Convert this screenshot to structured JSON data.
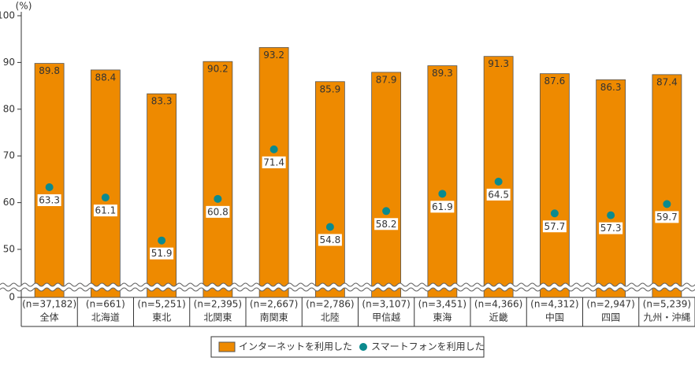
{
  "chart_data": {
    "type": "bar",
    "y_unit_label": "(%)",
    "categories": [
      "全体",
      "北海道",
      "東北",
      "北関東",
      "南関東",
      "北陸",
      "甲信越",
      "東海",
      "近畿",
      "中国",
      "四国",
      "九州・沖縄"
    ],
    "sample_sizes": [
      "(n=37,182)",
      "(n=661)",
      "(n=5,251)",
      "(n=2,395)",
      "(n=2,667)",
      "(n=2,786)",
      "(n=3,107)",
      "(n=3,451)",
      "(n=4,366)",
      "(n=4,312)",
      "(n=2,947)",
      "(n=5,239)"
    ],
    "series": [
      {
        "name": "インターネットを利用した",
        "type": "bar",
        "color": "#ee8a00",
        "values": [
          89.8,
          88.4,
          83.3,
          90.2,
          93.2,
          85.9,
          87.9,
          89.3,
          91.3,
          87.6,
          86.3,
          87.4
        ]
      },
      {
        "name": "スマートフォンを利用した",
        "type": "scatter",
        "color": "#0b8a8e",
        "values": [
          63.3,
          61.1,
          51.9,
          60.8,
          71.4,
          54.8,
          58.2,
          61.9,
          64.5,
          57.7,
          57.3,
          59.7
        ]
      }
    ],
    "ylim": [
      0,
      100
    ],
    "axis_break": [
      0,
      50
    ],
    "yticks": [
      0,
      50,
      60,
      70,
      80,
      90,
      100
    ],
    "grid": false,
    "legend": "bottom"
  }
}
